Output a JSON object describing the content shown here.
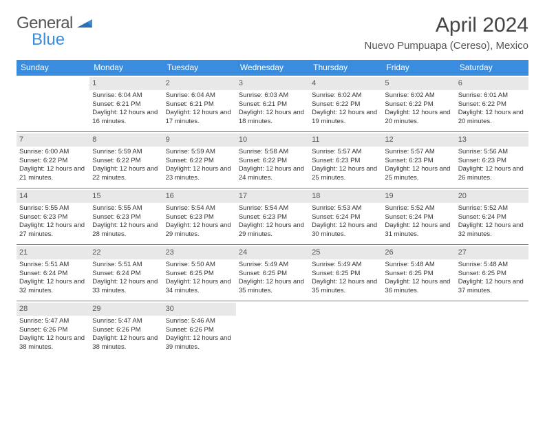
{
  "logo": {
    "text1": "General",
    "text2": "Blue"
  },
  "title": "April 2024",
  "location": "Nuevo Pumpuapa (Cereso), Mexico",
  "colors": {
    "brand_blue": "#3a8dde",
    "header_bg": "#3a8dde",
    "header_fg": "#ffffff",
    "daynum_bg": "#e8e8e8",
    "daynum_fg": "#555555",
    "text": "#333333",
    "background": "#ffffff"
  },
  "daysOfWeek": [
    "Sunday",
    "Monday",
    "Tuesday",
    "Wednesday",
    "Thursday",
    "Friday",
    "Saturday"
  ],
  "weeks": [
    [
      null,
      {
        "n": "1",
        "sr": "6:04 AM",
        "ss": "6:21 PM",
        "dl": "12 hours and 16 minutes."
      },
      {
        "n": "2",
        "sr": "6:04 AM",
        "ss": "6:21 PM",
        "dl": "12 hours and 17 minutes."
      },
      {
        "n": "3",
        "sr": "6:03 AM",
        "ss": "6:21 PM",
        "dl": "12 hours and 18 minutes."
      },
      {
        "n": "4",
        "sr": "6:02 AM",
        "ss": "6:22 PM",
        "dl": "12 hours and 19 minutes."
      },
      {
        "n": "5",
        "sr": "6:02 AM",
        "ss": "6:22 PM",
        "dl": "12 hours and 20 minutes."
      },
      {
        "n": "6",
        "sr": "6:01 AM",
        "ss": "6:22 PM",
        "dl": "12 hours and 20 minutes."
      }
    ],
    [
      {
        "n": "7",
        "sr": "6:00 AM",
        "ss": "6:22 PM",
        "dl": "12 hours and 21 minutes."
      },
      {
        "n": "8",
        "sr": "5:59 AM",
        "ss": "6:22 PM",
        "dl": "12 hours and 22 minutes."
      },
      {
        "n": "9",
        "sr": "5:59 AM",
        "ss": "6:22 PM",
        "dl": "12 hours and 23 minutes."
      },
      {
        "n": "10",
        "sr": "5:58 AM",
        "ss": "6:22 PM",
        "dl": "12 hours and 24 minutes."
      },
      {
        "n": "11",
        "sr": "5:57 AM",
        "ss": "6:23 PM",
        "dl": "12 hours and 25 minutes."
      },
      {
        "n": "12",
        "sr": "5:57 AM",
        "ss": "6:23 PM",
        "dl": "12 hours and 25 minutes."
      },
      {
        "n": "13",
        "sr": "5:56 AM",
        "ss": "6:23 PM",
        "dl": "12 hours and 26 minutes."
      }
    ],
    [
      {
        "n": "14",
        "sr": "5:55 AM",
        "ss": "6:23 PM",
        "dl": "12 hours and 27 minutes."
      },
      {
        "n": "15",
        "sr": "5:55 AM",
        "ss": "6:23 PM",
        "dl": "12 hours and 28 minutes."
      },
      {
        "n": "16",
        "sr": "5:54 AM",
        "ss": "6:23 PM",
        "dl": "12 hours and 29 minutes."
      },
      {
        "n": "17",
        "sr": "5:54 AM",
        "ss": "6:23 PM",
        "dl": "12 hours and 29 minutes."
      },
      {
        "n": "18",
        "sr": "5:53 AM",
        "ss": "6:24 PM",
        "dl": "12 hours and 30 minutes."
      },
      {
        "n": "19",
        "sr": "5:52 AM",
        "ss": "6:24 PM",
        "dl": "12 hours and 31 minutes."
      },
      {
        "n": "20",
        "sr": "5:52 AM",
        "ss": "6:24 PM",
        "dl": "12 hours and 32 minutes."
      }
    ],
    [
      {
        "n": "21",
        "sr": "5:51 AM",
        "ss": "6:24 PM",
        "dl": "12 hours and 32 minutes."
      },
      {
        "n": "22",
        "sr": "5:51 AM",
        "ss": "6:24 PM",
        "dl": "12 hours and 33 minutes."
      },
      {
        "n": "23",
        "sr": "5:50 AM",
        "ss": "6:25 PM",
        "dl": "12 hours and 34 minutes."
      },
      {
        "n": "24",
        "sr": "5:49 AM",
        "ss": "6:25 PM",
        "dl": "12 hours and 35 minutes."
      },
      {
        "n": "25",
        "sr": "5:49 AM",
        "ss": "6:25 PM",
        "dl": "12 hours and 35 minutes."
      },
      {
        "n": "26",
        "sr": "5:48 AM",
        "ss": "6:25 PM",
        "dl": "12 hours and 36 minutes."
      },
      {
        "n": "27",
        "sr": "5:48 AM",
        "ss": "6:25 PM",
        "dl": "12 hours and 37 minutes."
      }
    ],
    [
      {
        "n": "28",
        "sr": "5:47 AM",
        "ss": "6:26 PM",
        "dl": "12 hours and 38 minutes."
      },
      {
        "n": "29",
        "sr": "5:47 AM",
        "ss": "6:26 PM",
        "dl": "12 hours and 38 minutes."
      },
      {
        "n": "30",
        "sr": "5:46 AM",
        "ss": "6:26 PM",
        "dl": "12 hours and 39 minutes."
      },
      null,
      null,
      null,
      null
    ]
  ],
  "labels": {
    "sunrise": "Sunrise:",
    "sunset": "Sunset:",
    "daylight": "Daylight:"
  }
}
